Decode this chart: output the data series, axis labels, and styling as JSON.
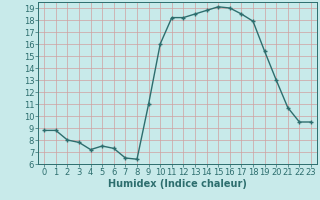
{
  "x": [
    0,
    1,
    2,
    3,
    4,
    5,
    6,
    7,
    8,
    9,
    10,
    11,
    12,
    13,
    14,
    15,
    16,
    17,
    18,
    19,
    20,
    21,
    22,
    23
  ],
  "y": [
    8.8,
    8.8,
    8.0,
    7.8,
    7.2,
    7.5,
    7.3,
    6.5,
    6.4,
    11.0,
    16.0,
    18.2,
    18.2,
    18.5,
    18.8,
    19.1,
    19.0,
    18.5,
    17.9,
    15.4,
    13.0,
    10.7,
    9.5,
    9.5
  ],
  "line_color": "#2d6e6e",
  "marker": "+",
  "bg_color": "#c8eaea",
  "grid_color": "#c0d8d8",
  "xlabel": "Humidex (Indice chaleur)",
  "xlim": [
    -0.5,
    23.5
  ],
  "ylim": [
    6,
    19.5
  ],
  "yticks": [
    6,
    7,
    8,
    9,
    10,
    11,
    12,
    13,
    14,
    15,
    16,
    17,
    18,
    19
  ],
  "xticks": [
    0,
    1,
    2,
    3,
    4,
    5,
    6,
    7,
    8,
    9,
    10,
    11,
    12,
    13,
    14,
    15,
    16,
    17,
    18,
    19,
    20,
    21,
    22,
    23
  ],
  "axis_color": "#2d6e6e",
  "label_fontsize": 7,
  "tick_fontsize": 6,
  "linewidth": 1.0,
  "markersize": 3.5,
  "markeredgewidth": 1.0
}
